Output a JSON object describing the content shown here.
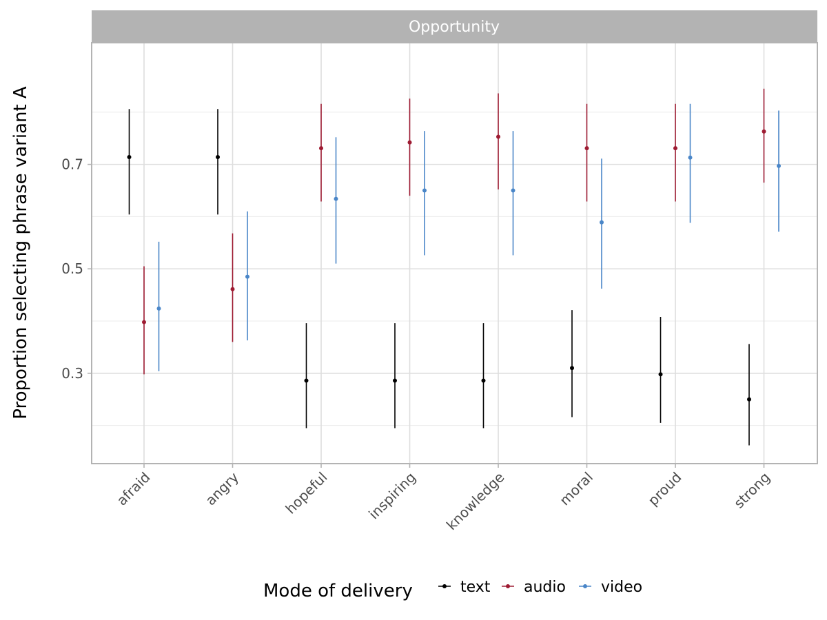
{
  "chart_data": {
    "type": "scatter",
    "facet_title": "Opportunity",
    "xlabel": "",
    "ylabel": "Proportion selecting phrase variant A",
    "categories": [
      "afraid",
      "angry",
      "hopeful",
      "inspiring",
      "knowledge",
      "moral",
      "proud",
      "strong"
    ],
    "y_ticks": [
      0.3,
      0.5,
      0.7
    ],
    "y_tick_labels": [
      "0.3",
      "0.5",
      "0.7"
    ],
    "ylim": [
      0.127,
      0.933
    ],
    "grid": true,
    "legend": {
      "title": "Mode of delivery",
      "position": "bottom"
    },
    "series": [
      {
        "name": "text",
        "color": "#000000",
        "values": [
          0.714,
          0.714,
          0.286,
          0.286,
          0.286,
          0.31,
          0.298,
          0.25
        ],
        "lower": [
          0.604,
          0.604,
          0.195,
          0.195,
          0.195,
          0.216,
          0.205,
          0.162
        ],
        "upper": [
          0.806,
          0.806,
          0.396,
          0.396,
          0.396,
          0.421,
          0.408,
          0.356
        ]
      },
      {
        "name": "audio",
        "color": "#9e1b32",
        "values": [
          0.398,
          0.461,
          0.731,
          0.742,
          0.753,
          0.731,
          0.731,
          0.763
        ],
        "lower": [
          0.298,
          0.36,
          0.629,
          0.64,
          0.652,
          0.629,
          0.629,
          0.665
        ],
        "upper": [
          0.505,
          0.568,
          0.816,
          0.826,
          0.836,
          0.816,
          0.816,
          0.845
        ]
      },
      {
        "name": "video",
        "color": "#4a86c8",
        "values": [
          0.424,
          0.485,
          0.634,
          0.65,
          0.65,
          0.589,
          0.713,
          0.697
        ],
        "lower": [
          0.304,
          0.363,
          0.51,
          0.526,
          0.526,
          0.462,
          0.588,
          0.571
        ],
        "upper": [
          0.552,
          0.61,
          0.752,
          0.764,
          0.764,
          0.711,
          0.816,
          0.803
        ]
      }
    ]
  }
}
